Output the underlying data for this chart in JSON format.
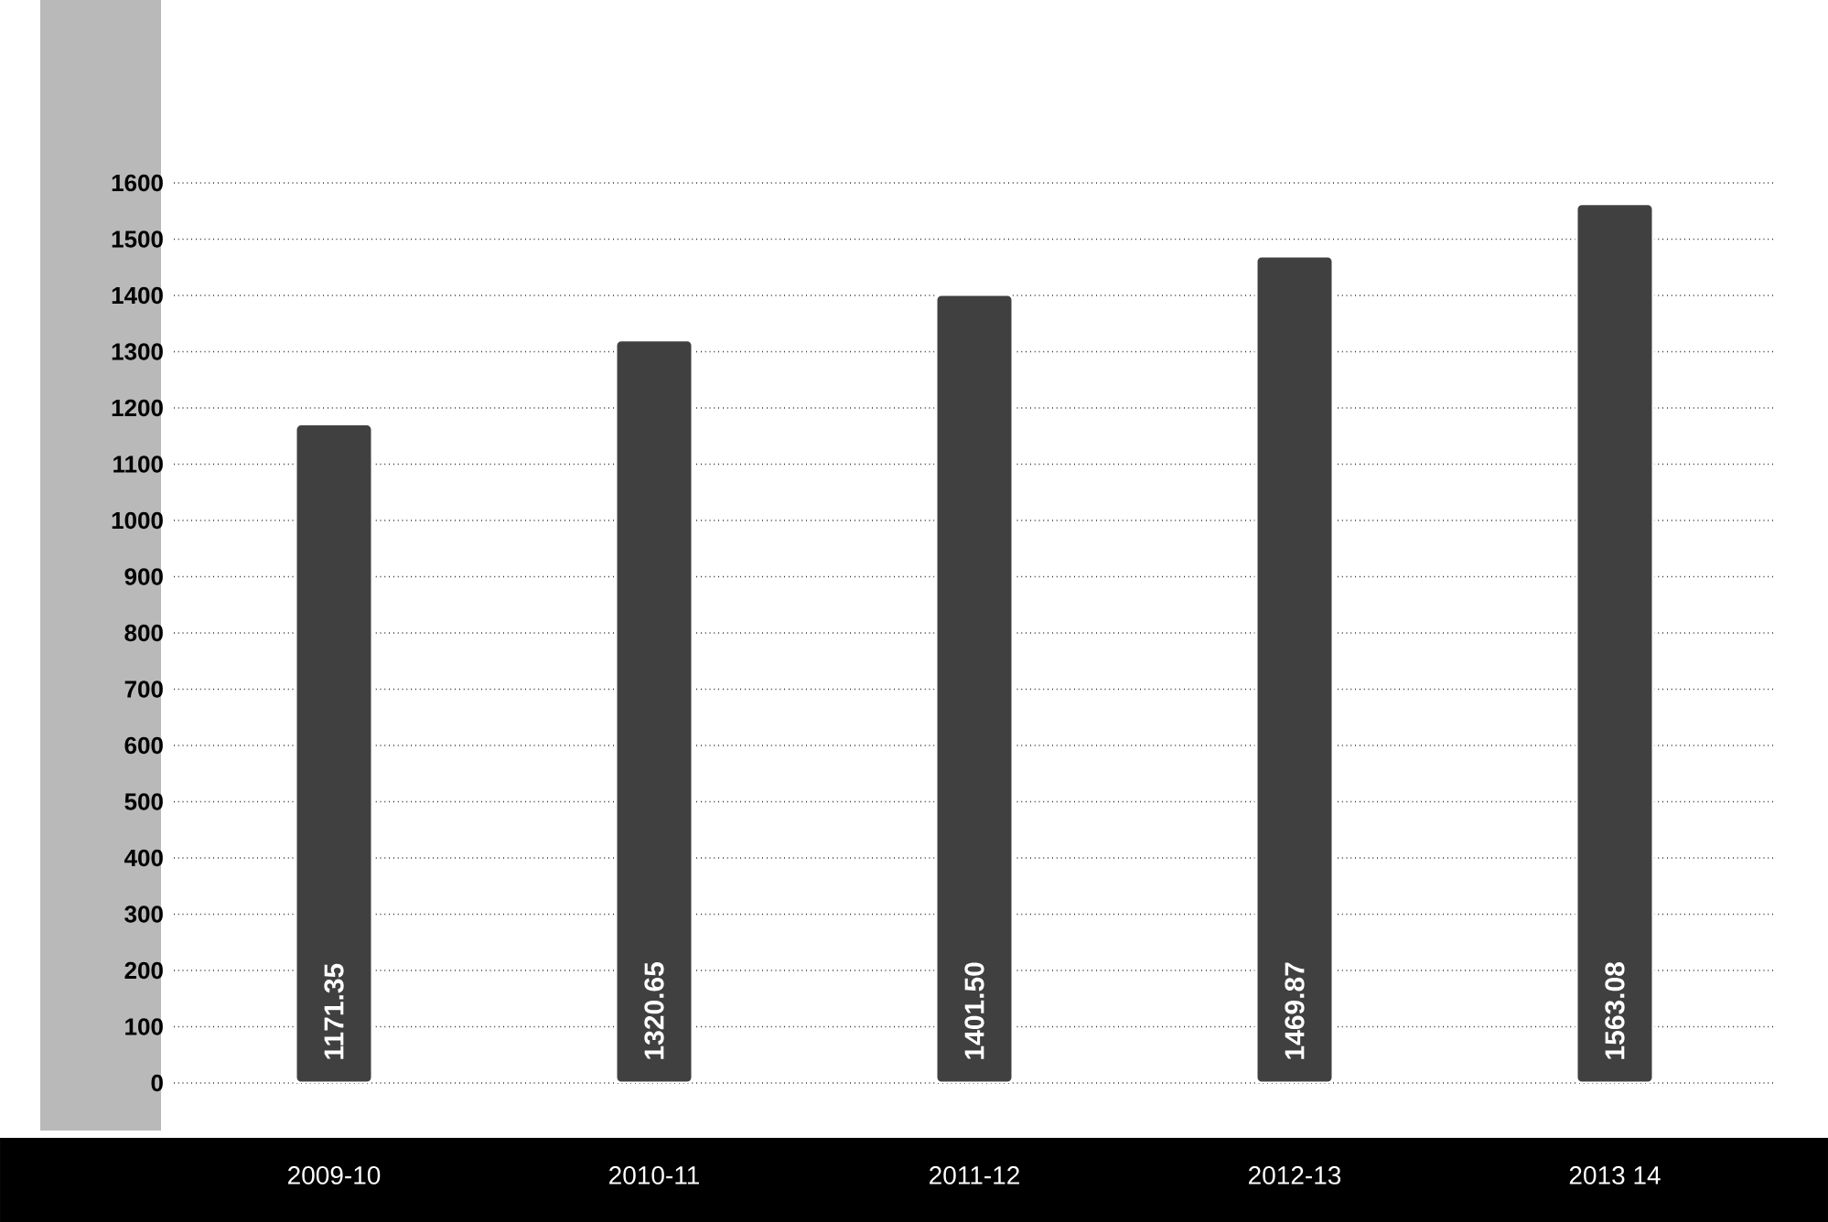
{
  "chart_data": {
    "type": "bar",
    "categories": [
      "2009-10",
      "2010-11",
      "2011-12",
      "2012-13",
      "2013 14"
    ],
    "values": [
      1171.35,
      1320.65,
      1401.5,
      1469.87,
      1563.08
    ],
    "value_labels": [
      "1171.35",
      "1320.65",
      "1401.50",
      "1469.87",
      "1563.08"
    ],
    "color": "#404040",
    "ylim": [
      0,
      1600
    ],
    "yticks": [
      0,
      100,
      200,
      300,
      400,
      500,
      600,
      700,
      800,
      900,
      1000,
      1100,
      1200,
      1300,
      1400,
      1500,
      1600
    ],
    "grid": "y"
  }
}
